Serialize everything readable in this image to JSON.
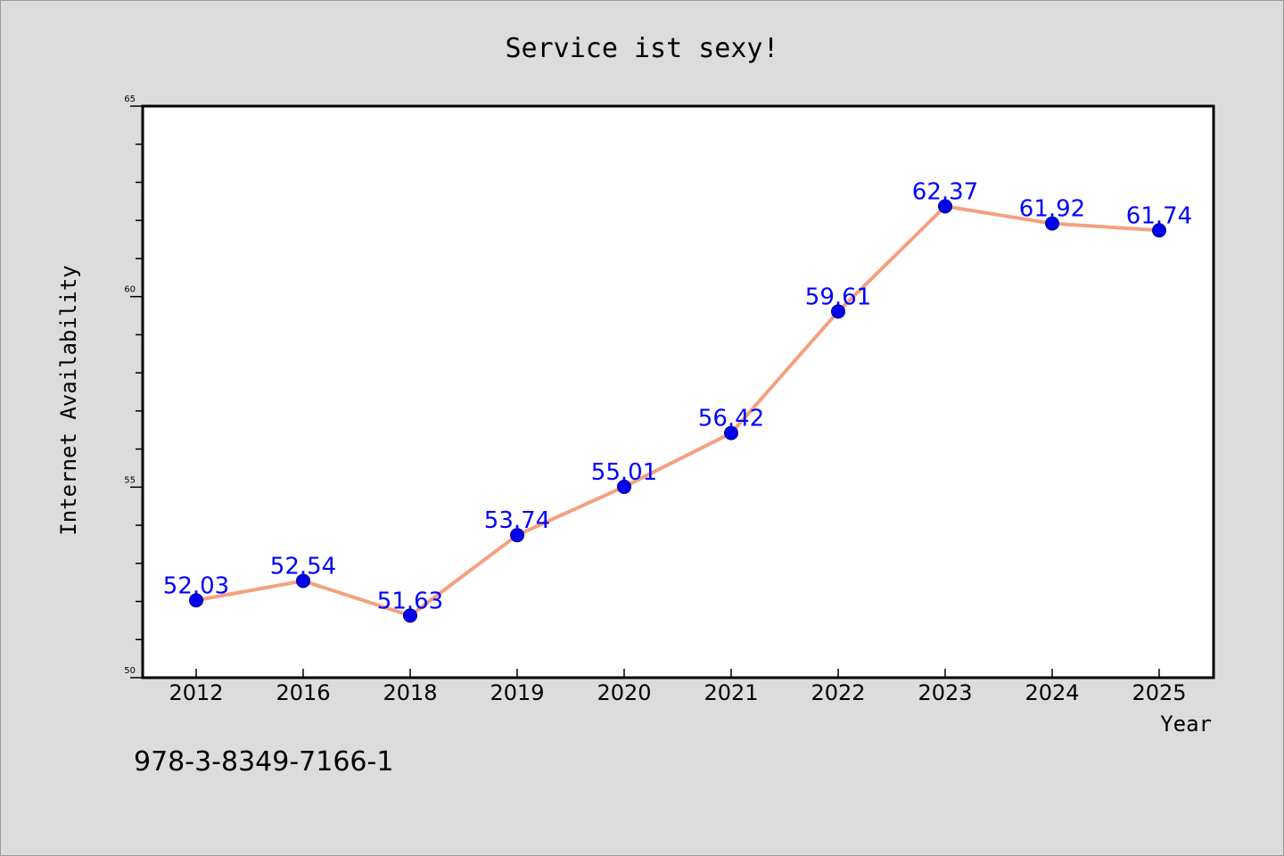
{
  "chart_data": {
    "type": "line",
    "title": "Service ist sexy!",
    "xlabel": "Year",
    "ylabel": "Internet Availability",
    "categories": [
      "2012",
      "2016",
      "2018",
      "2019",
      "2020",
      "2021",
      "2022",
      "2023",
      "2024",
      "2025"
    ],
    "series": [
      {
        "values": [
          52.03,
          52.54,
          51.63,
          53.74,
          55.01,
          56.42,
          59.61,
          62.37,
          61.92,
          61.74
        ],
        "labels": [
          "52.03",
          "52.54",
          "51.63",
          "53.74",
          "55.01",
          "56.42",
          "59.61",
          "62.37",
          "61.92",
          "61.74"
        ],
        "line_color": "#f4a07f",
        "marker_color": "#0000ee",
        "label_color": "#0000ff"
      }
    ],
    "ylim": [
      50,
      65
    ],
    "yticks": [
      "50",
      "55",
      "60",
      "65"
    ],
    "grid": false,
    "legend": "none"
  },
  "footer_text": "978-3-8349-7166-1"
}
